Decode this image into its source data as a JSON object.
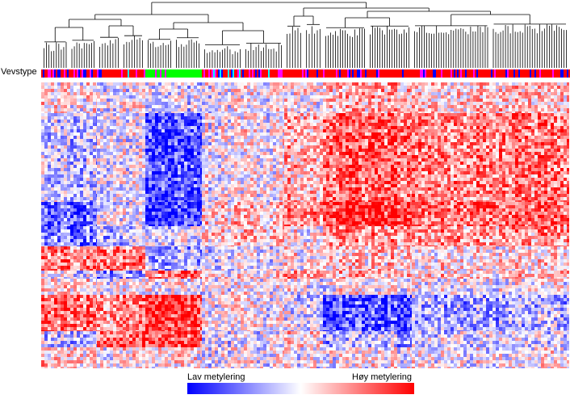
{
  "chart_data": {
    "type": "heatmap",
    "title": "",
    "annotation_row_label": "Vevstype",
    "annotation_colors": [
      "#ff0000",
      "#0000ff",
      "#ff00ff",
      "#00ff00",
      "#00ffff"
    ],
    "color_scale": {
      "low_label": "Lav metylering",
      "high_label": "Høy metylering",
      "low_color": "#0000ff",
      "mid_color": "#ffffff",
      "high_color": "#ff0000"
    },
    "dendrogram": "hierarchical clustering of columns",
    "column_clusters": [
      {
        "annotation": "mixed",
        "values": [
          0.1,
          -0.2,
          -0.6,
          -0.5,
          0.5,
          -0.1,
          0.1,
          0.6,
          -0.2,
          0.2
        ]
      },
      {
        "annotation": "mixed",
        "values": [
          0.0,
          0.0,
          0.0,
          -0.2,
          0.6,
          -0.4,
          0.0,
          0.5,
          0.7,
          0.1
        ]
      },
      {
        "annotation": "mostly green",
        "values": [
          -0.1,
          -0.7,
          -0.8,
          -0.1,
          -0.3,
          0.5,
          0.0,
          0.8,
          0.7,
          0.1
        ]
      },
      {
        "annotation": "mixed",
        "values": [
          0.0,
          0.0,
          0.2,
          0.2,
          -0.1,
          0.1,
          0.0,
          0.0,
          -0.1,
          0.0
        ]
      },
      {
        "annotation": "mostly red",
        "values": [
          0.1,
          0.3,
          0.5,
          0.1,
          0.1,
          0.4,
          0.0,
          -0.1,
          0.2,
          0.0
        ]
      },
      {
        "annotation": "mostly red",
        "values": [
          0.3,
          0.6,
          0.8,
          0.4,
          0.2,
          0.3,
          0.0,
          -0.7,
          -0.3,
          0.0
        ]
      },
      {
        "annotation": "mostly red",
        "values": [
          0.2,
          0.5,
          0.6,
          0.4,
          0.1,
          0.2,
          0.0,
          -0.3,
          -0.1,
          0.0
        ]
      }
    ]
  }
}
